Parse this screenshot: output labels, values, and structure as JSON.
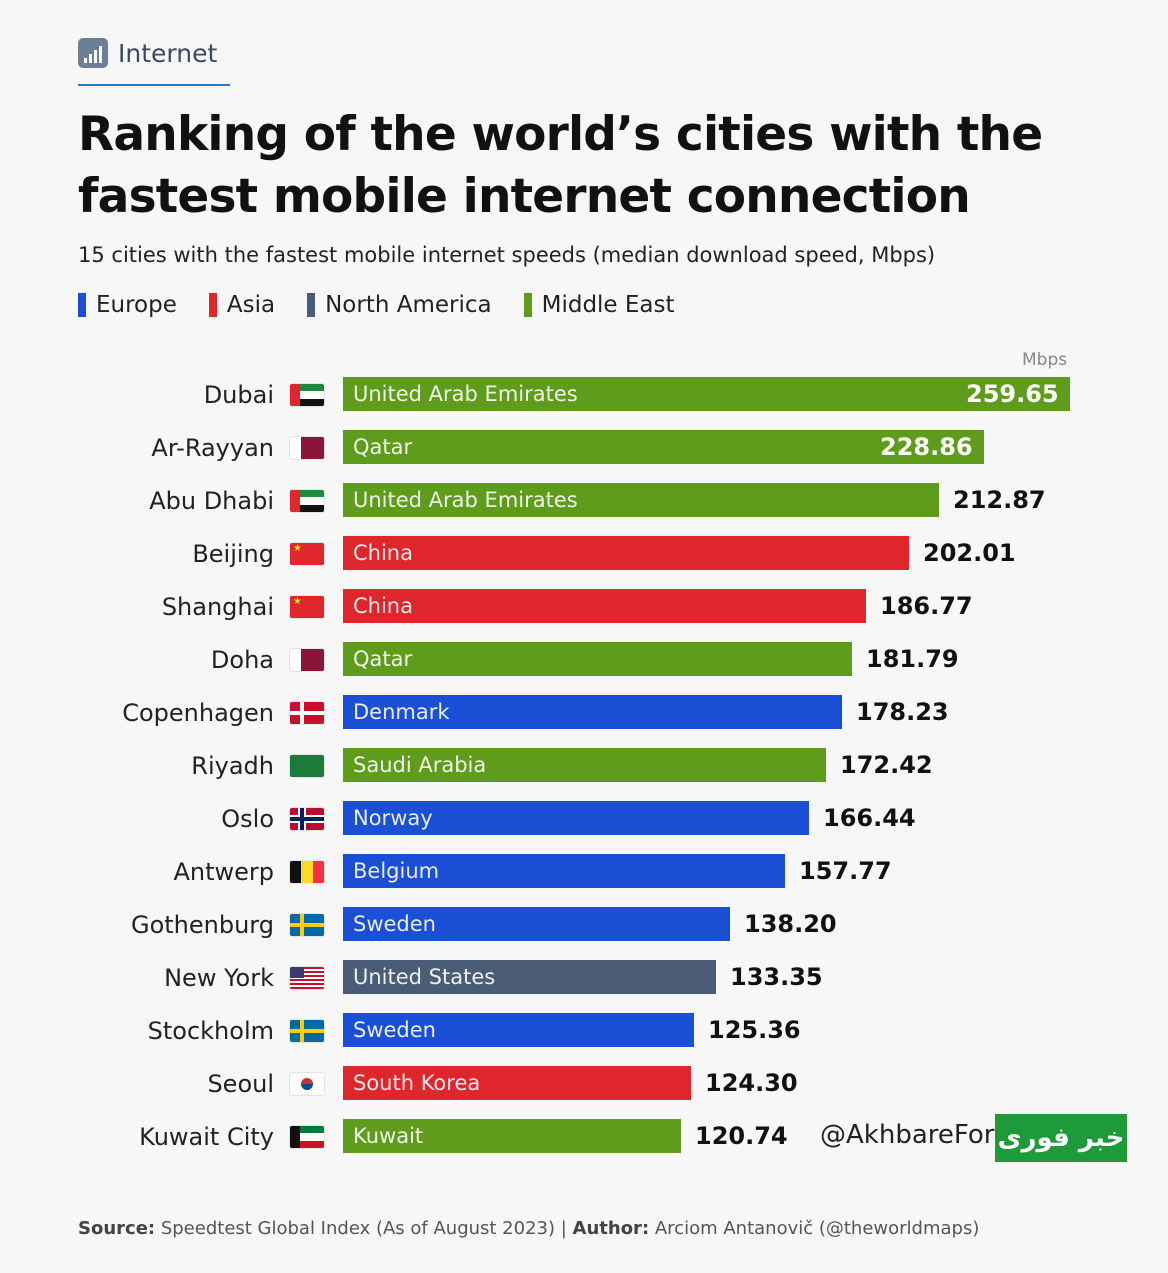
{
  "header": {
    "tag": "Internet",
    "title": "Ranking of the world’s cities with the fastest mobile internet connection",
    "subtitle": "15 cities with the fastest mobile internet speeds (median download speed, Mbps)"
  },
  "legend": [
    {
      "label": "Europe",
      "color": "#1a4fd6"
    },
    {
      "label": "Asia",
      "color": "#e0262d"
    },
    {
      "label": "North America",
      "color": "#4a5c76"
    },
    {
      "label": "Middle East",
      "color": "#5f9c1c"
    }
  ],
  "chart_data": {
    "type": "bar",
    "orientation": "horizontal",
    "unit_label": "Mbps",
    "xlim": [
      0,
      259.65
    ],
    "rows": [
      {
        "city": "Dubai",
        "country": "United Arab Emirates",
        "value": 259.65,
        "value_label": "259.65",
        "region": "Middle East",
        "flag": "uae"
      },
      {
        "city": "Ar-Rayyan",
        "country": "Qatar",
        "value": 228.86,
        "value_label": "228.86",
        "region": "Middle East",
        "flag": "qatar"
      },
      {
        "city": "Abu Dhabi",
        "country": "United Arab Emirates",
        "value": 212.87,
        "value_label": "212.87",
        "region": "Middle East",
        "flag": "uae"
      },
      {
        "city": "Beijing",
        "country": "China",
        "value": 202.01,
        "value_label": "202.01",
        "region": "Asia",
        "flag": "china"
      },
      {
        "city": "Shanghai",
        "country": "China",
        "value": 186.77,
        "value_label": "186.77",
        "region": "Asia",
        "flag": "china"
      },
      {
        "city": "Doha",
        "country": "Qatar",
        "value": 181.79,
        "value_label": "181.79",
        "region": "Middle East",
        "flag": "qatar"
      },
      {
        "city": "Copenhagen",
        "country": "Denmark",
        "value": 178.23,
        "value_label": "178.23",
        "region": "Europe",
        "flag": "denmark"
      },
      {
        "city": "Riyadh",
        "country": "Saudi Arabia",
        "value": 172.42,
        "value_label": "172.42",
        "region": "Middle East",
        "flag": "saudi"
      },
      {
        "city": "Oslo",
        "country": "Norway",
        "value": 166.44,
        "value_label": "166.44",
        "region": "Europe",
        "flag": "norway"
      },
      {
        "city": "Antwerp",
        "country": "Belgium",
        "value": 157.77,
        "value_label": "157.77",
        "region": "Europe",
        "flag": "belgium"
      },
      {
        "city": "Gothenburg",
        "country": "Sweden",
        "value": 138.2,
        "value_label": "138.20",
        "region": "Europe",
        "flag": "sweden"
      },
      {
        "city": "New York",
        "country": "United States",
        "value": 133.35,
        "value_label": "133.35",
        "region": "North America",
        "flag": "usa"
      },
      {
        "city": "Stockholm",
        "country": "Sweden",
        "value": 125.36,
        "value_label": "125.36",
        "region": "Europe",
        "flag": "sweden"
      },
      {
        "city": "Seoul",
        "country": "South Korea",
        "value": 124.3,
        "value_label": "124.30",
        "region": "Asia",
        "flag": "korea"
      },
      {
        "city": "Kuwait City",
        "country": "Kuwait",
        "value": 120.74,
        "value_label": "120.74",
        "region": "Middle East",
        "flag": "kuwait"
      }
    ]
  },
  "watermark": {
    "handle": "@AkhbareFori",
    "logo_text": "خبر فوری"
  },
  "footer": {
    "source_label": "Source:",
    "source_text": " Speedtest Global Index (As of August 2023) | ",
    "author_label": "Author:",
    "author_text": " Arciom Antanovič (@theworldmaps)"
  }
}
